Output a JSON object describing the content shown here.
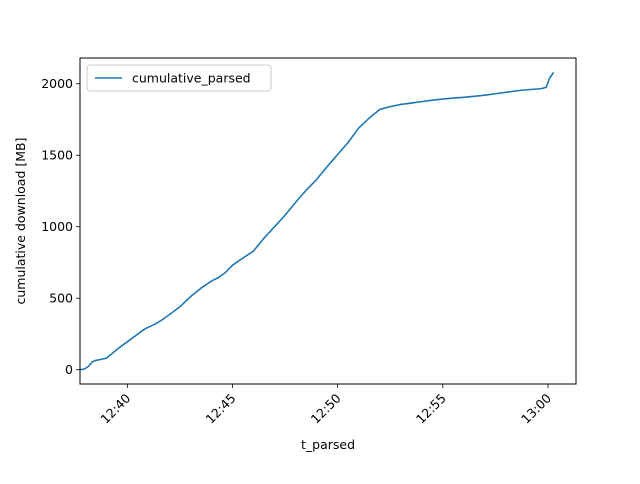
{
  "chart_data": {
    "type": "line",
    "title": "",
    "xlabel": "t_parsed",
    "ylabel": "cumulative download [MB]",
    "x_ticks": [
      "12:40",
      "12:45",
      "12:50",
      "12:55",
      "13:00"
    ],
    "y_ticks": [
      0,
      500,
      1000,
      1500,
      2000
    ],
    "xlim": [
      "12:37:45",
      "13:01:20"
    ],
    "ylim": [
      -100,
      2180
    ],
    "grid": false,
    "legend": {
      "position": "top-left"
    },
    "series": [
      {
        "name": "cumulative_parsed",
        "color": "#1f77b4",
        "x": [
          "12:37:45",
          "12:37:58",
          "12:38:10",
          "12:38:20",
          "12:38:30",
          "12:39:00",
          "12:39:20",
          "12:39:40",
          "12:40:00",
          "12:40:30",
          "12:40:50",
          "12:41:20",
          "12:41:40",
          "12:42:00",
          "12:42:30",
          "12:43:00",
          "12:43:30",
          "12:44:00",
          "12:44:20",
          "12:44:40",
          "12:45:00",
          "12:45:20",
          "12:46:00",
          "12:46:30",
          "12:47:00",
          "12:47:30",
          "12:48:00",
          "12:48:30",
          "12:49:00",
          "12:49:30",
          "12:50:00",
          "12:50:30",
          "12:51:00",
          "12:51:30",
          "12:51:50",
          "12:52:00",
          "12:52:30",
          "12:53:00",
          "12:53:30",
          "12:54:00",
          "12:54:30",
          "12:55:00",
          "12:55:30",
          "12:56:00",
          "12:56:30",
          "12:57:00",
          "12:57:30",
          "12:58:00",
          "12:58:30",
          "12:59:00",
          "12:59:40",
          "12:59:55",
          "13:00:05",
          "13:00:15"
        ],
        "y": [
          0,
          5,
          25,
          55,
          65,
          80,
          120,
          160,
          195,
          250,
          285,
          320,
          350,
          385,
          440,
          510,
          570,
          620,
          645,
          680,
          730,
          765,
          830,
          920,
          1000,
          1080,
          1170,
          1255,
          1330,
          1420,
          1505,
          1590,
          1690,
          1760,
          1800,
          1820,
          1840,
          1855,
          1865,
          1875,
          1885,
          1893,
          1900,
          1905,
          1912,
          1920,
          1930,
          1940,
          1950,
          1958,
          1965,
          1975,
          2040,
          2075
        ]
      }
    ]
  }
}
